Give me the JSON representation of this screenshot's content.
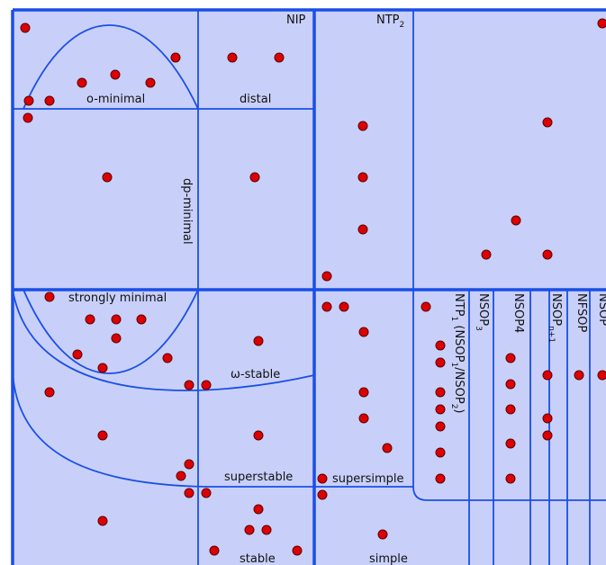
{
  "colors": {
    "background": "#c8d0fa",
    "line": "#1a4fe6",
    "dot_fill": "#dd0000",
    "dot_stroke": "#5a0000",
    "text": "#111111"
  },
  "labels": {
    "nip": "NIP",
    "ntp2_base": "NTP",
    "ntp2_sub": "2",
    "o_minimal": "o-minimal",
    "distal": "distal",
    "dp_minimal": "dp-minimal",
    "strongly_minimal": "strongly minimal",
    "omega_stable": "ω-stable",
    "superstable": "superstable",
    "supersimple": "supersimple",
    "stable": "stable",
    "simple": "simple",
    "ntp1_part1": "NTP",
    "ntp1_sub1": "1",
    "ntp1_part2": " (NSOP",
    "ntp1_sub2": "1",
    "ntp1_part3": "/NSOP",
    "ntp1_sub3": "2",
    "ntp1_part4": ")",
    "nsop3_base": "NSOP",
    "nsop3_sub": "3",
    "nsop4": "NSOP4",
    "nsopn1_base": "NSOP",
    "nsopn1_sub": "n+1",
    "nfsop": "NFSOP",
    "nsop_cut": "NSOP"
  }
}
